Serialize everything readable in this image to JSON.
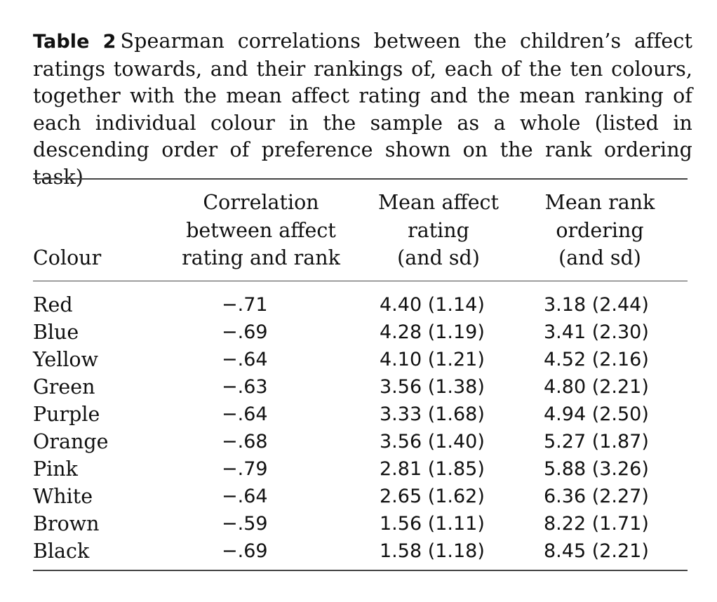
{
  "caption": {
    "label": "Table 2",
    "text": "Spearman correlations between the children’s affect ratings towards, and their rankings of, each of the ten colours, together with the mean affect rating and the mean ranking of each individual colour in the sample as a whole (listed in descending order of preference shown on the rank ordering task)"
  },
  "table": {
    "headers": {
      "colour": "Colour",
      "correlation": [
        "Correlation",
        "between affect",
        "rating and rank"
      ],
      "mean_affect": [
        "Mean affect",
        "rating",
        "(and sd)"
      ],
      "mean_rank": [
        "Mean rank",
        "ordering",
        "(and sd)"
      ]
    },
    "rows": [
      {
        "colour": "Red",
        "correlation": "−.71",
        "mean_affect": "4.40 (1.14)",
        "mean_rank": "3.18 (2.44)"
      },
      {
        "colour": "Blue",
        "correlation": "−.69",
        "mean_affect": "4.28 (1.19)",
        "mean_rank": "3.41 (2.30)"
      },
      {
        "colour": "Yellow",
        "correlation": "−.64",
        "mean_affect": "4.10 (1.21)",
        "mean_rank": "4.52 (2.16)"
      },
      {
        "colour": "Green",
        "correlation": "−.63",
        "mean_affect": "3.56 (1.38)",
        "mean_rank": "4.80 (2.21)"
      },
      {
        "colour": "Purple",
        "correlation": "−.64",
        "mean_affect": "3.33 (1.68)",
        "mean_rank": "4.94 (2.50)"
      },
      {
        "colour": "Orange",
        "correlation": "−.68",
        "mean_affect": "3.56 (1.40)",
        "mean_rank": "5.27 (1.87)"
      },
      {
        "colour": "Pink",
        "correlation": "−.79",
        "mean_affect": "2.81 (1.85)",
        "mean_rank": "5.88 (3.26)"
      },
      {
        "colour": "White",
        "correlation": "−.64",
        "mean_affect": "2.65 (1.62)",
        "mean_rank": "6.36 (2.27)"
      },
      {
        "colour": "Brown",
        "correlation": "−.59",
        "mean_affect": "1.56 (1.11)",
        "mean_rank": "8.22 (1.71)"
      },
      {
        "colour": "Black",
        "correlation": "−.69",
        "mean_affect": "1.58 (1.18)",
        "mean_rank": "8.45 (2.21)"
      }
    ]
  }
}
